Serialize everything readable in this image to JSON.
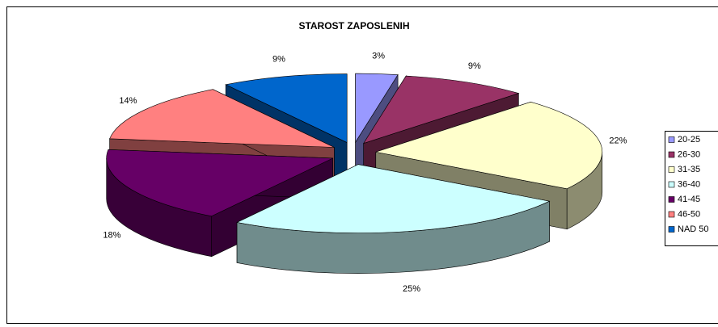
{
  "chart_data": {
    "type": "pie3d",
    "title": "STAROST ZAPOSLENIH",
    "categories": [
      "20-25",
      "26-30",
      "31-35",
      "36-40",
      "41-45",
      "46-50",
      "NAD 50"
    ],
    "values": [
      3,
      9,
      22,
      25,
      18,
      14,
      9
    ],
    "value_labels": [
      "3%",
      "9%",
      "22%",
      "25%",
      "18%",
      "14%",
      "9%"
    ],
    "colors": [
      "#9999ff",
      "#993366",
      "#ffffcc",
      "#ccffff",
      "#660066",
      "#ff8080",
      "#0066cc"
    ],
    "legend": "right"
  }
}
